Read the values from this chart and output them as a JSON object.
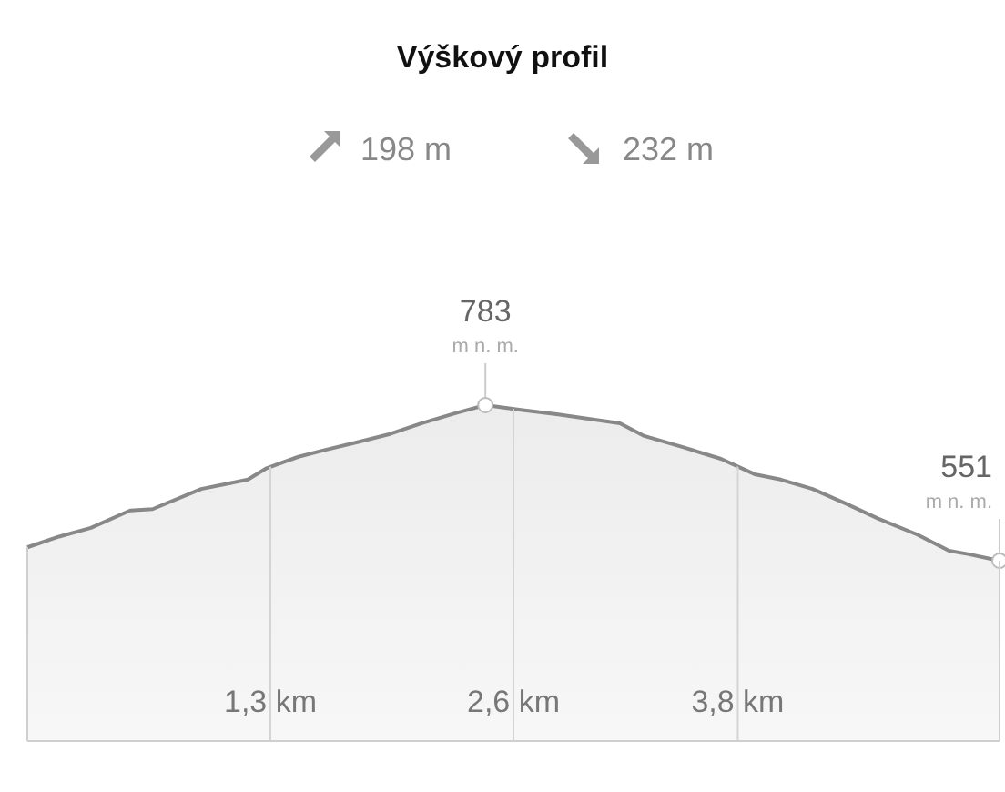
{
  "chart_data": {
    "type": "area",
    "title": "Výškový profil",
    "annotations": [
      "198 m",
      "232 m",
      {
        "text": "m n. m.",
        "x": 2.45,
        "y": 783
      },
      {
        "text": "m n. m.",
        "x": 5.2,
        "y": 551
      }
    ],
    "x": [
      0,
      0.17,
      0.34,
      0.55,
      0.67,
      0.93,
      1.18,
      1.28,
      1.45,
      1.59,
      1.77,
      1.94,
      2.11,
      2.29,
      2.45,
      2.64,
      2.84,
      3.17,
      3.3,
      3.51,
      3.71,
      3.89,
      4.03,
      4.2,
      4.38,
      4.55,
      4.76,
      4.93,
      5.03,
      5.2
    ],
    "series": [
      {
        "color": "#888888",
        "values": [
          571,
          587,
          600,
          626,
          628,
          658,
          672,
          689,
          706,
          716,
          728,
          740,
          756,
          771,
          783,
          776,
          769,
          756,
          737,
          720,
          703,
          680,
          672,
          658,
          636,
          614,
          590,
          566,
          561,
          551
        ],
        "value_labels": [
          null,
          null,
          null,
          null,
          null,
          null,
          null,
          null,
          null,
          null,
          null,
          null,
          null,
          null,
          "783",
          null,
          null,
          null,
          null,
          null,
          null,
          null,
          null,
          null,
          null,
          null,
          null,
          null,
          null,
          "551"
        ]
      }
    ],
    "xlim": [
      0,
      5.2
    ],
    "xticks": [
      {
        "value": 1.3,
        "label": "1,3 km"
      },
      {
        "value": 2.6,
        "label": "2,6 km"
      },
      {
        "value": 3.8,
        "label": "3,8 km"
      }
    ],
    "tick_labels": "x",
    "grid": "x",
    "marker": "none",
    "line_style": "solid"
  }
}
